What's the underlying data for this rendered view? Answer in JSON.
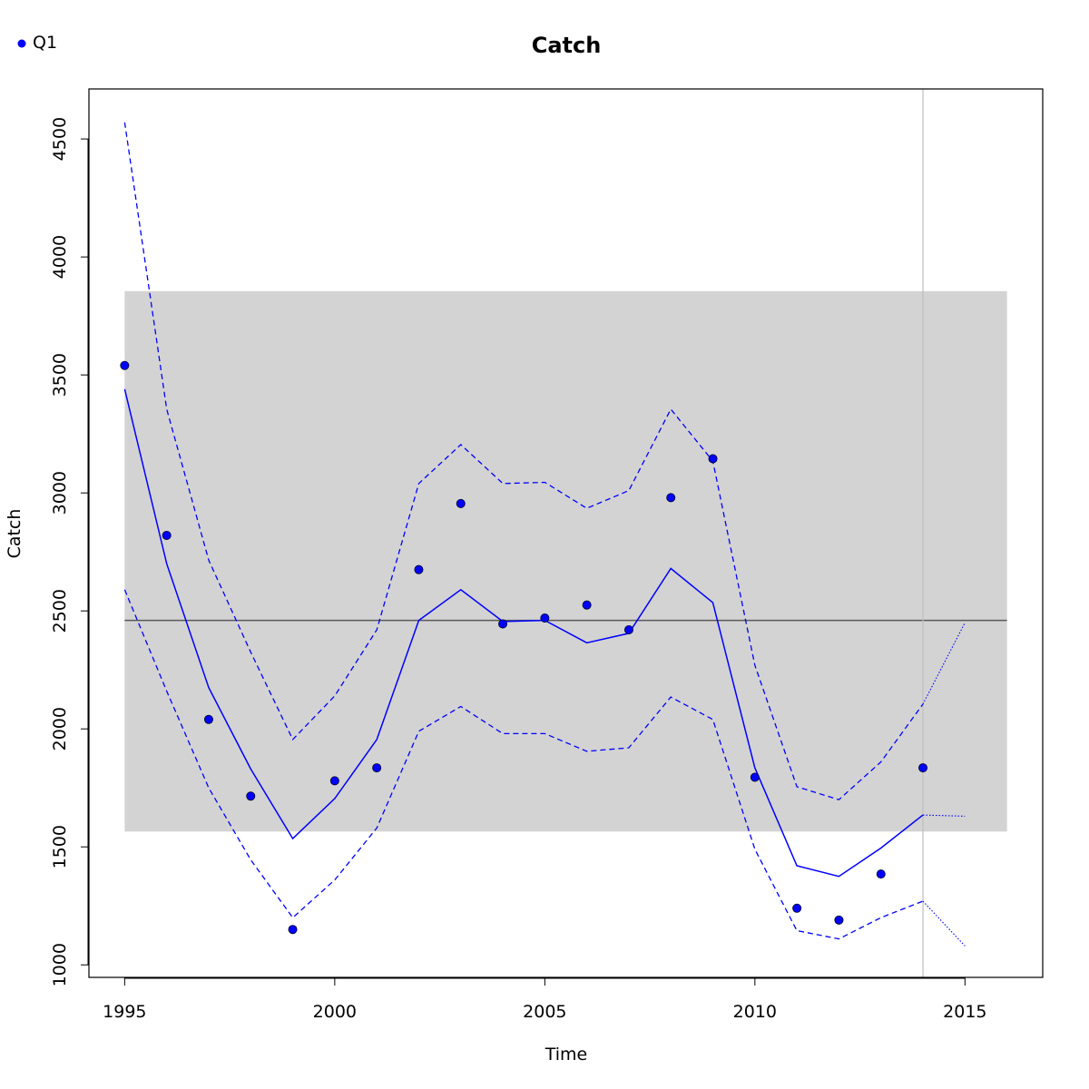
{
  "chart_data": {
    "type": "line",
    "title": "Catch",
    "xlabel": "Time",
    "ylabel": "Catch",
    "xlim": [
      1994.15,
      2016.85
    ],
    "ylim": [
      947,
      4712
    ],
    "x_ticks": [
      "1995",
      "2000",
      "2005",
      "2010",
      "2015"
    ],
    "y_ticks": [
      "1000",
      "1500",
      "2000",
      "2500",
      "3000",
      "3500",
      "4000",
      "4500"
    ],
    "legend": {
      "position": "top-left",
      "entries": [
        {
          "label": "Q1",
          "color": "#0000ff",
          "marker": "filled-circle"
        }
      ]
    },
    "band": {
      "x_from": 1995,
      "x_to": 2016,
      "y_from": 1565,
      "y_to": 3855,
      "color": "#d3d3d3"
    },
    "reference_line": {
      "y": 2460,
      "color": "#595959"
    },
    "vertical_line": {
      "x": 2014,
      "color": "#bebebe"
    },
    "series": [
      {
        "name": "Q1",
        "color": "#0000ff",
        "observed": {
          "x": [
            1995,
            1996,
            1997,
            1998,
            1999,
            2000,
            2001,
            2002,
            2003,
            2004,
            2005,
            2006,
            2007,
            2008,
            2009,
            2010,
            2011,
            2012,
            2013,
            2014
          ],
          "y": [
            3540,
            2820,
            2040,
            1715,
            1150,
            1780,
            1835,
            2675,
            2955,
            2445,
            2470,
            2525,
            2420,
            2980,
            3145,
            1795,
            1240,
            1190,
            1385,
            1835
          ]
        },
        "fitted": {
          "x": [
            1995,
            1996,
            1997,
            1998,
            1999,
            2000,
            2001,
            2002,
            2003,
            2004,
            2005,
            2006,
            2007,
            2008,
            2009,
            2010,
            2011,
            2012,
            2013,
            2014
          ],
          "y": [
            3440,
            2700,
            2175,
            1830,
            1535,
            1705,
            1955,
            2460,
            2590,
            2455,
            2460,
            2365,
            2405,
            2680,
            2535,
            1835,
            1420,
            1375,
            1495,
            1635
          ]
        },
        "upper": {
          "x": [
            1995,
            1996,
            1997,
            1998,
            1999,
            2000,
            2001,
            2002,
            2003,
            2004,
            2005,
            2006,
            2007,
            2008,
            2009,
            2010,
            2011,
            2012,
            2013,
            2014
          ],
          "y": [
            4570,
            3355,
            2715,
            2325,
            1955,
            2140,
            2420,
            3040,
            3205,
            3040,
            3045,
            2935,
            3010,
            3355,
            3135,
            2270,
            1755,
            1700,
            1860,
            2105
          ]
        },
        "lower": {
          "x": [
            1995,
            1996,
            1997,
            1998,
            1999,
            2000,
            2001,
            2002,
            2003,
            2004,
            2005,
            2006,
            2007,
            2008,
            2009,
            2010,
            2011,
            2012,
            2013,
            2014
          ],
          "y": [
            2590,
            2160,
            1750,
            1445,
            1200,
            1360,
            1580,
            1990,
            2095,
            1980,
            1980,
            1905,
            1920,
            2135,
            2040,
            1490,
            1145,
            1110,
            1200,
            1270
          ]
        },
        "forecast_fitted": {
          "x": [
            2014,
            2015
          ],
          "y": [
            1635,
            1630
          ]
        },
        "forecast_upper": {
          "x": [
            2014,
            2015
          ],
          "y": [
            2105,
            2450
          ]
        },
        "forecast_lower": {
          "x": [
            2014,
            2015
          ],
          "y": [
            1270,
            1080
          ]
        }
      }
    ]
  }
}
